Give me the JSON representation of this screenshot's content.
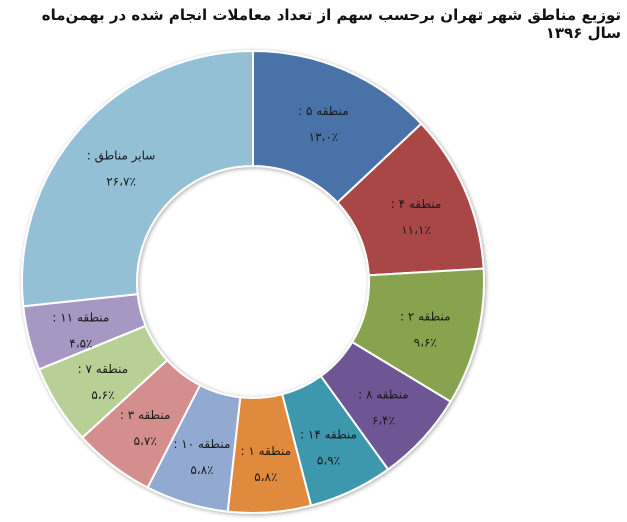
{
  "title": "توزیع مناطق شهر تهران برحسب سهم از تعداد معاملات انجام شده در بهمن‌ماه سال ۱۳۹۶",
  "chart_data": {
    "type": "pie",
    "subtype": "doughnut",
    "title": "توزیع مناطق شهر تهران برحسب سهم از تعداد معاملات انجام شده در بهمن‌ماه سال ۱۳۹۶",
    "start_angle_deg": 0,
    "direction": "clockwise",
    "slices": [
      {
        "name": "منطقه ۵",
        "label": "منطقه ۵ :",
        "value": 13.0,
        "value_label": "۱۳،۰٪",
        "color": "#4a72a8"
      },
      {
        "name": "منطقه ۴",
        "label": "منطقه ۴ :",
        "value": 11.1,
        "value_label": "۱۱،۱٪",
        "color": "#a84644"
      },
      {
        "name": "منطقه ۲",
        "label": "منطقه ۲ :",
        "value": 9.6,
        "value_label": "۹،۶٪",
        "color": "#88a34d"
      },
      {
        "name": "منطقه ۸",
        "label": "منطقه ۸ :",
        "value": 6.4,
        "value_label": "۶،۴٪",
        "color": "#6e5593"
      },
      {
        "name": "منطقه ۱۴",
        "label": "منطقه ۱۴ :",
        "value": 5.9,
        "value_label": "۵،۹٪",
        "color": "#3e97ad"
      },
      {
        "name": "منطقه ۱",
        "label": "منطقه ۱ :",
        "value": 5.8,
        "value_label": "۵،۸٪",
        "color": "#e08a3c"
      },
      {
        "name": "منطقه ۱۰",
        "label": "منطقه ۱۰ :",
        "value": 5.8,
        "value_label": "۵،۸٪",
        "color": "#92a9d2"
      },
      {
        "name": "منطقه ۳",
        "label": "منطقه ۳ :",
        "value": 5.7,
        "value_label": "۵،۷٪",
        "color": "#d48e8d"
      },
      {
        "name": "منطقه ۷",
        "label": "منطقه ۷ :",
        "value": 5.6,
        "value_label": "۵،۶٪",
        "color": "#b8d096"
      },
      {
        "name": "منطقه ۱۱",
        "label": "منطقه ۱۱ :",
        "value": 4.5,
        "value_label": "۴،۵٪",
        "color": "#a698c3"
      },
      {
        "name": "سایر مناطق",
        "label": "سایر مناطق :",
        "value": 26.7,
        "value_label": "۲۶،۷٪",
        "color": "#93c0d4"
      }
    ],
    "legend": "none",
    "data_labels": "inside"
  }
}
